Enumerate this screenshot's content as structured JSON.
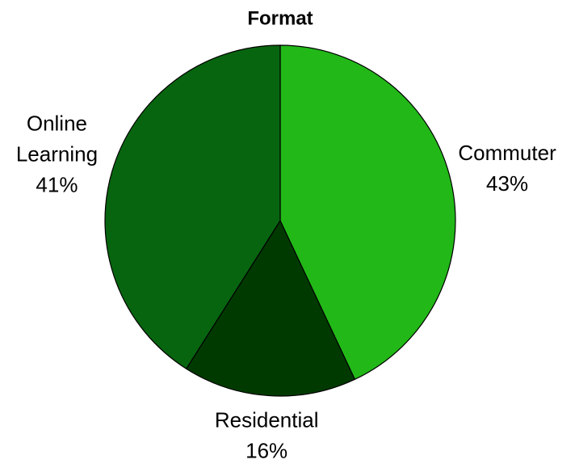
{
  "chart_data": {
    "type": "pie",
    "title": "Format",
    "categories": [
      "Commuter",
      "Residential",
      "Online Learning"
    ],
    "values": [
      43,
      16,
      41
    ],
    "value_labels": [
      "43%",
      "16%",
      "41%"
    ],
    "colors": [
      "#22b818",
      "#003a00",
      "#07650f"
    ]
  }
}
